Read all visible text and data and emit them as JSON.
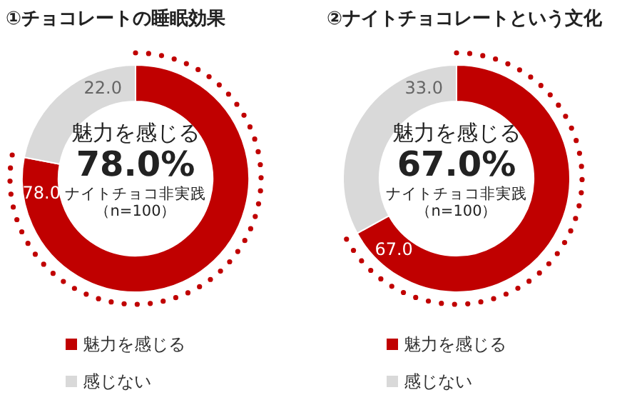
{
  "chart_data": [
    {
      "type": "donut",
      "title": "①チョコレートの睡眠効果",
      "categories": [
        "魅力を感じる",
        "感じない"
      ],
      "values": [
        78.0,
        22.0
      ],
      "value_labels": [
        "78.0",
        "22.0"
      ],
      "colors": [
        "#c00000",
        "#d9d9d9"
      ],
      "legend": "bottom",
      "annotations": [
        "魅力を感じる",
        "78.0%",
        "ナイトチョコ非実践",
        "（n=100）"
      ]
    },
    {
      "type": "donut",
      "title": "②ナイトチョコレートという文化",
      "categories": [
        "魅力を感じる",
        "感じない"
      ],
      "values": [
        67.0,
        33.0
      ],
      "value_labels": [
        "67.0",
        "33.0"
      ],
      "colors": [
        "#c00000",
        "#d9d9d9"
      ],
      "legend": "bottom",
      "annotations": [
        "魅力を感じる",
        "67.0%",
        "ナイトチョコ非実践",
        "（n=100）"
      ]
    }
  ]
}
